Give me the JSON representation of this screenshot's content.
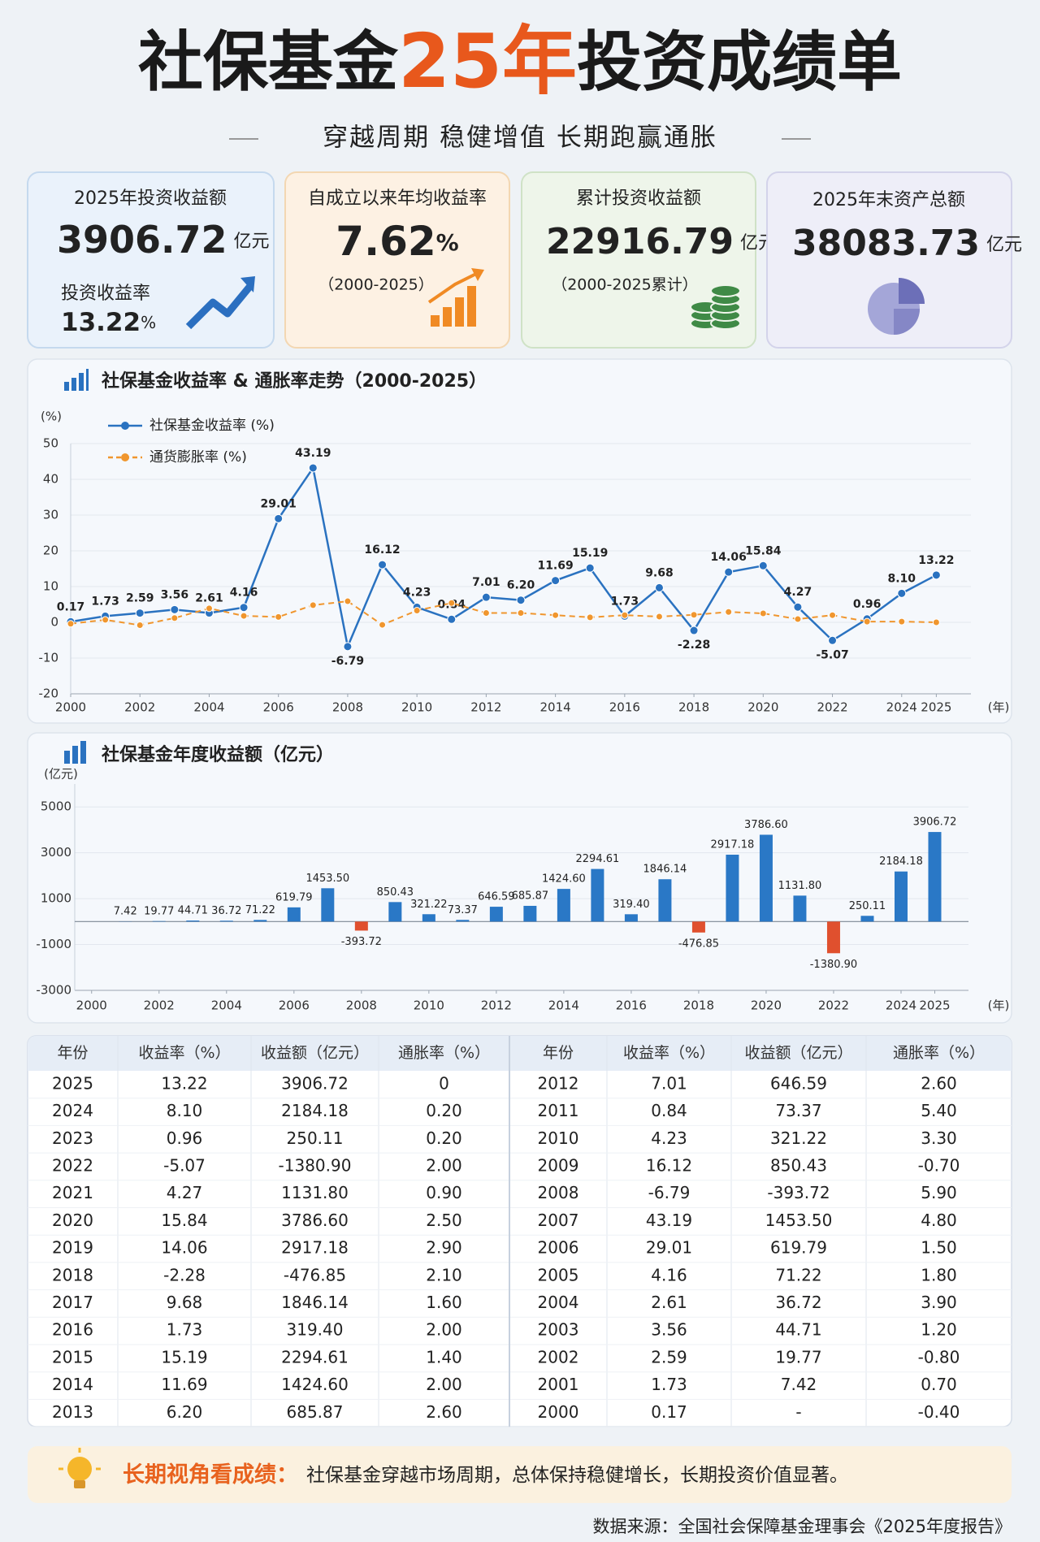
{
  "header": {
    "title_parts": [
      "社保基金",
      "25年",
      "投资成绩单"
    ],
    "subtitle": "穿越周期 稳健增值 长期跑赢通胀"
  },
  "cards": [
    {
      "label": "2025年投资收益额",
      "value": 3906.72,
      "unit": "亿元",
      "sub_label": "投资收益率",
      "sub_value": 13.22,
      "sub_unit": "%"
    },
    {
      "label": "自成立以来年均收益率",
      "value": 7.62,
      "unit": "%",
      "note": "（2000-2025）"
    },
    {
      "label": "累计投资收益额",
      "value": 22916.79,
      "unit": "亿元",
      "note": "（2000-2025累计）"
    },
    {
      "label": "2025年末资产总额",
      "value": 38083.73,
      "unit": "亿元"
    }
  ],
  "chart_data": [
    {
      "type": "line",
      "title": "社保基金收益率 & 通胀率走势（2000-2025）",
      "y_label": "(%)",
      "x_label": "(年)",
      "x": [
        2000,
        2001,
        2002,
        2003,
        2004,
        2005,
        2006,
        2007,
        2008,
        2009,
        2010,
        2011,
        2012,
        2013,
        2014,
        2015,
        2016,
        2017,
        2018,
        2019,
        2020,
        2021,
        2022,
        2023,
        2024,
        2025
      ],
      "series": [
        {
          "name": "社保基金收益率 (%)",
          "color": "#2a72c0",
          "linestyle": "solid",
          "values": [
            0.17,
            1.73,
            2.59,
            3.56,
            2.61,
            4.16,
            29.01,
            43.19,
            -6.79,
            16.12,
            4.23,
            0.84,
            7.01,
            6.2,
            11.69,
            15.19,
            1.73,
            9.68,
            -2.28,
            14.06,
            15.84,
            4.27,
            -5.07,
            0.96,
            8.1,
            13.22
          ],
          "value_labels": [
            "0.17",
            "1.73",
            "2.59",
            "3.56",
            "2.61",
            "4.16",
            "29.01",
            "43.19",
            "-6.79",
            "16.12",
            "4.23",
            "0.84",
            "7.01",
            "6.20",
            "11.69",
            "15.19",
            "1.73",
            "9.68",
            "-2.28",
            "14.06",
            "15.84",
            "4.27",
            "-5.07",
            "0.96",
            "8.10",
            "13.22"
          ]
        },
        {
          "name": "通货膨胀率 (%)",
          "color": "#f0962e",
          "linestyle": "dashed",
          "values": [
            -0.4,
            0.7,
            -0.8,
            1.2,
            3.9,
            1.8,
            1.5,
            4.8,
            5.9,
            -0.7,
            3.3,
            5.4,
            2.6,
            2.6,
            2.0,
            1.4,
            2.0,
            1.6,
            2.1,
            2.9,
            2.5,
            0.9,
            2.0,
            0.2,
            0.2,
            0
          ]
        }
      ],
      "xlim": [
        2000,
        2026
      ],
      "ylim": [
        -20,
        50
      ],
      "xticks": [
        2000,
        2002,
        2004,
        2006,
        2008,
        2010,
        2012,
        2014,
        2016,
        2018,
        2020,
        2022,
        2024,
        2025
      ],
      "yticks": [
        -20,
        -10,
        0,
        10,
        20,
        30,
        40,
        50
      ],
      "grid": true,
      "legend": "upper left"
    },
    {
      "type": "bar",
      "title": "社保基金年度收益额（亿元）",
      "y_label": "(亿元)",
      "x_label": "(年)",
      "x": [
        2000,
        2001,
        2002,
        2003,
        2004,
        2005,
        2006,
        2007,
        2008,
        2009,
        2010,
        2011,
        2012,
        2013,
        2014,
        2015,
        2016,
        2017,
        2018,
        2019,
        2020,
        2021,
        2022,
        2023,
        2024,
        2025
      ],
      "values": [
        null,
        7.42,
        19.77,
        44.71,
        36.72,
        71.22,
        619.79,
        1453.5,
        -393.72,
        850.43,
        321.22,
        73.37,
        646.59,
        685.87,
        1424.6,
        2294.61,
        319.4,
        1846.14,
        -476.85,
        2917.18,
        3786.6,
        1131.8,
        -1380.9,
        250.11,
        2184.18,
        3906.72
      ],
      "value_labels": [
        null,
        "7.42",
        "19.77",
        "44.71",
        "36.72",
        "71.22",
        "619.79",
        "1453.50",
        "-393.72",
        "850.43",
        "321.22",
        "73.37",
        "646.59",
        "685.87",
        "1424.60",
        "2294.61",
        "319.40",
        "1846.14",
        "-476.85",
        "2917.18",
        "3786.60",
        "1131.80",
        "-1380.90",
        "250.11",
        "2184.18",
        "3906.72"
      ],
      "color": "#2a78c6",
      "negative_color": "#e0502e",
      "xlim": [
        1999.5,
        2026
      ],
      "ylim": [
        -3000,
        6000
      ],
      "xticks": [
        2000,
        2002,
        2004,
        2006,
        2008,
        2010,
        2012,
        2014,
        2016,
        2018,
        2020,
        2022,
        2024,
        2025
      ],
      "yticks": [
        -3000,
        -1000,
        1000,
        3000,
        5000
      ],
      "grid": true
    }
  ],
  "table": {
    "headers": [
      "年份",
      "收益率（%）",
      "收益额（亿元）",
      "通胀率（%）"
    ],
    "rows": [
      [
        "2025",
        "13.22",
        "3906.72",
        "0"
      ],
      [
        "2024",
        "8.10",
        "2184.18",
        "0.20"
      ],
      [
        "2023",
        "0.96",
        "250.11",
        "0.20"
      ],
      [
        "2022",
        "-5.07",
        "-1380.90",
        "2.00"
      ],
      [
        "2021",
        "4.27",
        "1131.80",
        "0.90"
      ],
      [
        "2020",
        "15.84",
        "3786.60",
        "2.50"
      ],
      [
        "2019",
        "14.06",
        "2917.18",
        "2.90"
      ],
      [
        "2018",
        "-2.28",
        "-476.85",
        "2.10"
      ],
      [
        "2017",
        "9.68",
        "1846.14",
        "1.60"
      ],
      [
        "2016",
        "1.73",
        "319.40",
        "2.00"
      ],
      [
        "2015",
        "15.19",
        "2294.61",
        "1.40"
      ],
      [
        "2014",
        "11.69",
        "1424.60",
        "2.00"
      ],
      [
        "2013",
        "6.20",
        "685.87",
        "2.60"
      ],
      [
        "2012",
        "7.01",
        "646.59",
        "2.60"
      ],
      [
        "2011",
        "0.84",
        "73.37",
        "5.40"
      ],
      [
        "2010",
        "4.23",
        "321.22",
        "3.30"
      ],
      [
        "2009",
        "16.12",
        "850.43",
        "-0.70"
      ],
      [
        "2008",
        "-6.79",
        "-393.72",
        "5.90"
      ],
      [
        "2007",
        "43.19",
        "1453.50",
        "4.80"
      ],
      [
        "2006",
        "29.01",
        "619.79",
        "1.50"
      ],
      [
        "2005",
        "4.16",
        "71.22",
        "1.80"
      ],
      [
        "2004",
        "2.61",
        "36.72",
        "3.90"
      ],
      [
        "2003",
        "3.56",
        "44.71",
        "1.20"
      ],
      [
        "2002",
        "2.59",
        "19.77",
        "-0.80"
      ],
      [
        "2001",
        "1.73",
        "7.42",
        "0.70"
      ],
      [
        "2000",
        "0.17",
        "-",
        "-0.40"
      ]
    ]
  },
  "footer": {
    "tip_title": "长期视角看成绩：",
    "tip_text": "社保基金穿越市场周期，总体保持稳健增长，长期投资价值显著。",
    "source": "数据来源：全国社会保障基金理事会《2025年度报告》"
  }
}
